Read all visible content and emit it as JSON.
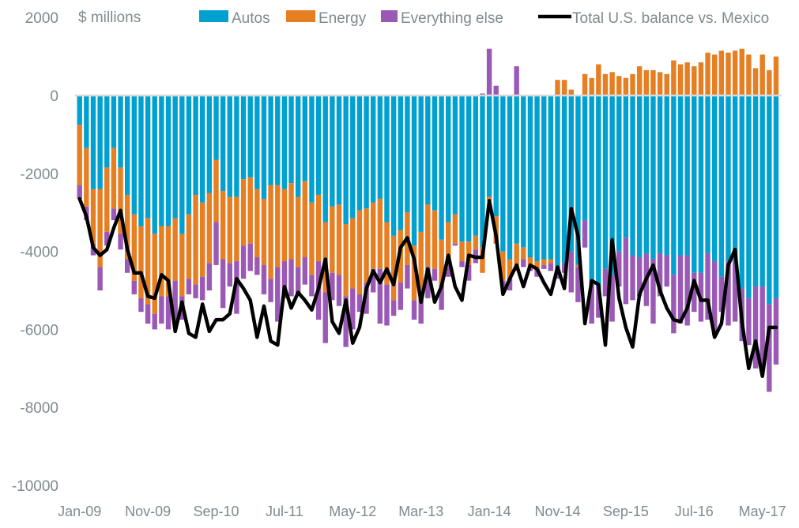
{
  "chart_data": {
    "type": "bar",
    "subtype": "stacked-bar-with-line",
    "title": "",
    "unit_label": "$ millions",
    "xlabel": "",
    "ylabel": "$ millions",
    "ylim": [
      -10000,
      2000
    ],
    "yticks": [
      2000,
      0,
      -2000,
      -4000,
      -6000,
      -8000,
      -10000
    ],
    "ytick_labels": [
      "2000",
      "0",
      "-2000",
      "-4000",
      "-6000",
      "-8000",
      "-10000"
    ],
    "xtick_labels": [
      "Jan-09",
      "Nov-09",
      "Sep-10",
      "Jul-11",
      "May-12",
      "Mar-13",
      "Jan-14",
      "Nov-14",
      "Sep-15",
      "Jul-16",
      "May-17"
    ],
    "xtick_indices": [
      0,
      10,
      20,
      30,
      40,
      50,
      60,
      70,
      80,
      90,
      100
    ],
    "grid": false,
    "legend_position": "top",
    "colors": {
      "autos": "#00a1d0",
      "energy": "#e67e22",
      "other": "#9b59b6",
      "total": "#000000",
      "zero_line": "#d9d9d9"
    },
    "legend": [
      {
        "key": "autos",
        "label": "Autos"
      },
      {
        "key": "energy",
        "label": "Energy"
      },
      {
        "key": "other",
        "label": "Everything else"
      },
      {
        "key": "total",
        "label": "Total U.S. balance vs. Mexico"
      }
    ],
    "x": [
      "Jan-09",
      "Feb-09",
      "Mar-09",
      "Apr-09",
      "May-09",
      "Jun-09",
      "Jul-09",
      "Aug-09",
      "Sep-09",
      "Oct-09",
      "Nov-09",
      "Dec-09",
      "Jan-10",
      "Feb-10",
      "Mar-10",
      "Apr-10",
      "May-10",
      "Jun-10",
      "Jul-10",
      "Aug-10",
      "Sep-10",
      "Oct-10",
      "Nov-10",
      "Dec-10",
      "Jan-11",
      "Feb-11",
      "Mar-11",
      "Apr-11",
      "May-11",
      "Jun-11",
      "Jul-11",
      "Aug-11",
      "Sep-11",
      "Oct-11",
      "Nov-11",
      "Dec-11",
      "Jan-12",
      "Feb-12",
      "Mar-12",
      "Apr-12",
      "May-12",
      "Jun-12",
      "Jul-12",
      "Aug-12",
      "Sep-12",
      "Oct-12",
      "Nov-12",
      "Dec-12",
      "Jan-13",
      "Feb-13",
      "Mar-13",
      "Apr-13",
      "May-13",
      "Jun-13",
      "Jul-13",
      "Aug-13",
      "Sep-13",
      "Oct-13",
      "Nov-13",
      "Dec-13",
      "Jan-14",
      "Feb-14",
      "Mar-14",
      "Apr-14",
      "May-14",
      "Jun-14",
      "Jul-14",
      "Aug-14",
      "Sep-14",
      "Oct-14",
      "Nov-14",
      "Dec-14",
      "Jan-15",
      "Feb-15",
      "Mar-15",
      "Apr-15",
      "May-15",
      "Jun-15",
      "Jul-15",
      "Aug-15",
      "Sep-15",
      "Oct-15",
      "Nov-15",
      "Dec-15",
      "Jan-16",
      "Feb-16",
      "Mar-16",
      "Apr-16",
      "May-16",
      "Jun-16",
      "Jul-16",
      "Aug-16",
      "Sep-16",
      "Oct-16",
      "Nov-16",
      "Dec-16",
      "Jan-17",
      "Feb-17",
      "Mar-17",
      "Apr-17",
      "May-17",
      "Jun-17",
      "Jul-17"
    ],
    "series": [
      {
        "name": "Autos",
        "key": "autos",
        "values": [
          -750,
          -1350,
          -2400,
          -2400,
          -1850,
          -1350,
          -1850,
          -2550,
          -3050,
          -3350,
          -3150,
          -3550,
          -3350,
          -3350,
          -3150,
          -3550,
          -3050,
          -2550,
          -2750,
          -2500,
          -1650,
          -2450,
          -2600,
          -2600,
          -2150,
          -2100,
          -2400,
          -2650,
          -2300,
          -2300,
          -2400,
          -2250,
          -2600,
          -2200,
          -2750,
          -2550,
          -3250,
          -2850,
          -2800,
          -3300,
          -3150,
          -2950,
          -2900,
          -2750,
          -2650,
          -3250,
          -3600,
          -3450,
          -3000,
          -3850,
          -3500,
          -2800,
          -2950,
          -3700,
          -3250,
          -3050,
          -3750,
          -3750,
          -3600,
          -3900,
          -2600,
          -3100,
          -4000,
          -4200,
          -3800,
          -3900,
          -4150,
          -4250,
          -4200,
          -4200,
          -4400,
          -4300,
          -4000,
          -4350,
          -3200,
          -4750,
          -4900,
          -4450,
          -4600,
          -4000,
          -3650,
          -4100,
          -4150,
          -4050,
          -4200,
          -4050,
          -4100,
          -4600,
          -4100,
          -4100,
          -4550,
          -4550,
          -4050,
          -4250,
          -4650,
          -4250,
          -4250,
          -4950,
          -5200,
          -4900,
          -4900,
          -5350,
          -5200
        ],
        "negative_note": "Energy is negative in early years and positive from late 2014 onward"
      },
      {
        "name": "Energy",
        "key": "energy",
        "values": [
          -1550,
          -1500,
          -1400,
          -2000,
          -1650,
          -1550,
          -1700,
          -1650,
          -1700,
          -1850,
          -2200,
          -2050,
          -1800,
          -1800,
          -1600,
          -1600,
          -1650,
          -2300,
          -1900,
          -1800,
          -1600,
          -1750,
          -1700,
          -1650,
          -1700,
          -1700,
          -1750,
          -1700,
          -2400,
          -2100,
          -1850,
          -1950,
          -1800,
          -1950,
          -1850,
          -1700,
          -1800,
          -1700,
          -1800,
          -1850,
          -1800,
          -2150,
          -1900,
          -1700,
          -1800,
          -1600,
          -1650,
          -1350,
          -1350,
          -1400,
          -1700,
          -1600,
          -1500,
          -1150,
          -1100,
          -750,
          -500,
          -600,
          -350,
          -650,
          -100,
          -700,
          -750,
          -500,
          -700,
          -300,
          -300,
          -200,
          -150,
          -100,
          400,
          400,
          150,
          -50,
          550,
          450,
          800,
          550,
          600,
          500,
          450,
          550,
          750,
          650,
          650,
          600,
          550,
          900,
          800,
          850,
          750,
          850,
          1100,
          1050,
          1150,
          1100,
          1150,
          1200,
          1050,
          700,
          1050,
          650,
          1000
        ]
      },
      {
        "name": "Everything else",
        "key": "other",
        "values": [
          -350,
          -350,
          -300,
          -600,
          -350,
          -300,
          -400,
          -350,
          -350,
          -350,
          -500,
          -400,
          -700,
          -850,
          -1100,
          -600,
          -400,
          -350,
          -600,
          -700,
          -1100,
          -1250,
          -600,
          -1350,
          -850,
          -700,
          -450,
          -750,
          -600,
          -1400,
          -950,
          -950,
          -700,
          -700,
          -550,
          -1500,
          -1300,
          -700,
          -800,
          -1300,
          -1050,
          -450,
          -800,
          -600,
          -1400,
          -1050,
          -400,
          -700,
          -600,
          -500,
          -650,
          -800,
          -300,
          -650,
          -300,
          -50,
          -150,
          -400,
          -350,
          50,
          1200,
          250,
          -150,
          -300,
          750,
          -200,
          -50,
          -200,
          -100,
          -200,
          -300,
          -250,
          -1050,
          -900,
          -700,
          -1100,
          -800,
          -700,
          -1200,
          -900,
          -1700,
          -1150,
          -1000,
          -1350,
          -1650,
          -1100,
          -800,
          -1500,
          -1750,
          -1800,
          -1000,
          -1250,
          -1700,
          -1900,
          -900,
          -1650,
          -1550,
          -1350,
          -1200,
          -2100,
          -2150,
          -2250,
          -1700
        ]
      },
      {
        "name": "Total U.S. balance vs. Mexico",
        "key": "total",
        "type": "line",
        "values": [
          -2650,
          -3100,
          -3900,
          -4100,
          -3950,
          -3400,
          -2950,
          -3950,
          -4550,
          -4550,
          -5150,
          -5200,
          -4600,
          -4750,
          -6050,
          -5300,
          -6100,
          -6200,
          -5350,
          -6050,
          -5750,
          -5750,
          -5600,
          -4700,
          -4950,
          -5250,
          -6200,
          -5400,
          -6300,
          -6400,
          -4900,
          -5450,
          -5050,
          -5250,
          -5500,
          -4950,
          -4200,
          -5800,
          -6100,
          -5250,
          -6350,
          -5950,
          -4950,
          -4500,
          -4800,
          -4450,
          -4850,
          -3900,
          -3650,
          -4200,
          -5300,
          -4450,
          -5300,
          -4900,
          -4100,
          -4900,
          -5250,
          -4100,
          -4150,
          -4150,
          -2700,
          -3600,
          -5100,
          -4700,
          -4350,
          -4900,
          -4350,
          -4450,
          -4800,
          -5100,
          -4400,
          -4950,
          -2900,
          -3600,
          -5850,
          -4750,
          -4850,
          -6400,
          -3700,
          -5200,
          -5950,
          -6450,
          -5100,
          -4700,
          -4350,
          -5000,
          -5450,
          -5750,
          -5800,
          -5450,
          -4750,
          -5250,
          -5250,
          -6200,
          -5850,
          -4350,
          -3950,
          -5800,
          -7000,
          -6300,
          -7200,
          -5950,
          -5950
        ]
      }
    ]
  }
}
